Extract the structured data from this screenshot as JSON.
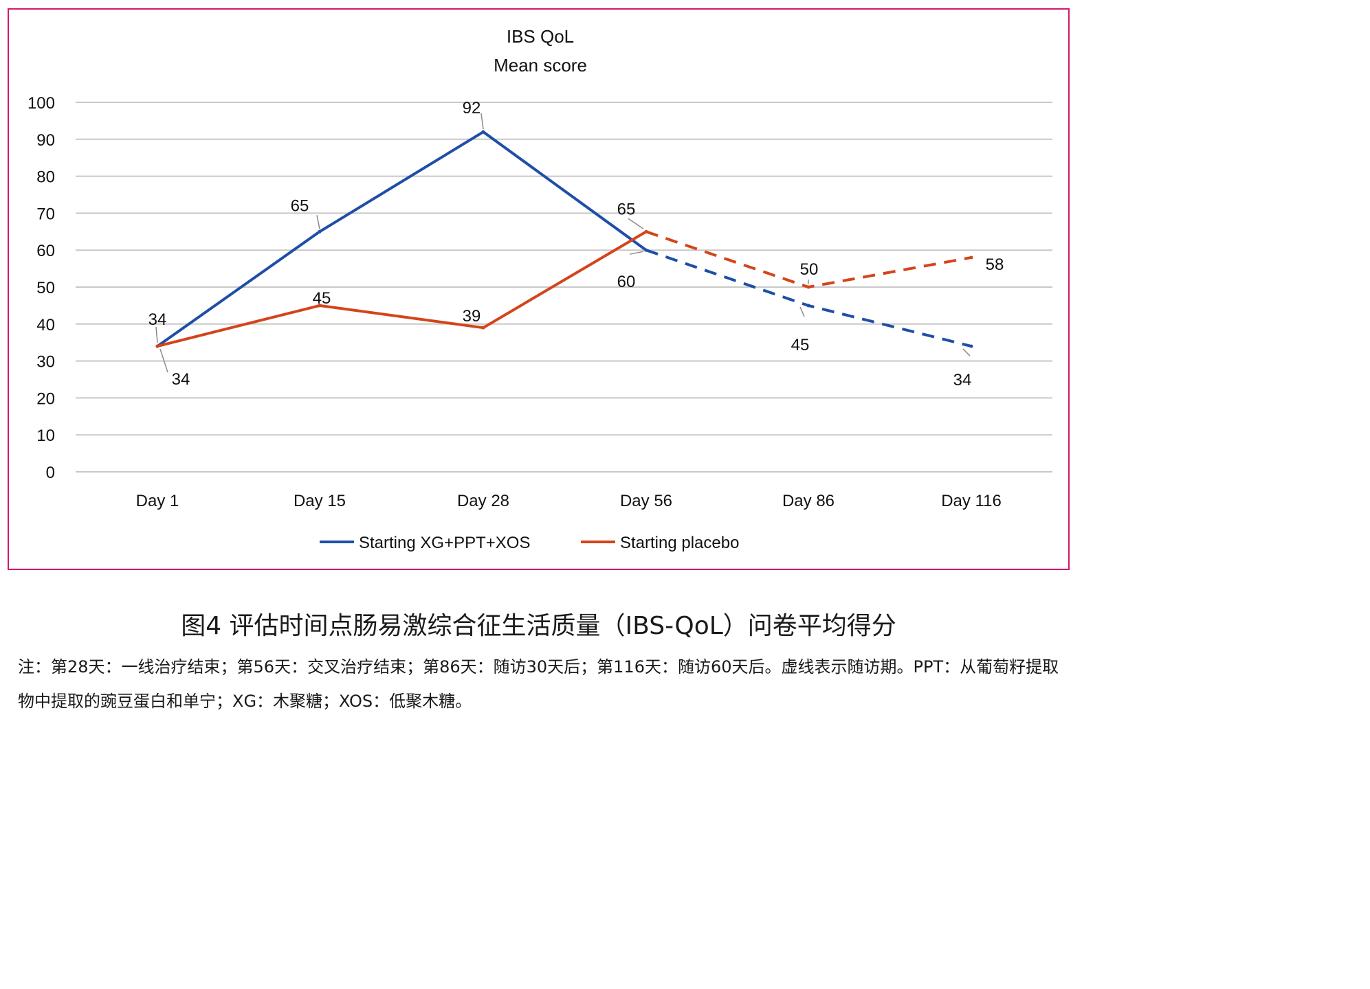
{
  "chart_data": {
    "type": "line",
    "title": "IBS QoL",
    "subtitle": "Mean score",
    "categories": [
      "Day 1",
      "Day 15",
      "Day 28",
      "Day 56",
      "Day 86",
      "Day 116"
    ],
    "ylim": [
      0,
      100
    ],
    "yticks": [
      0,
      10,
      20,
      30,
      40,
      50,
      60,
      70,
      80,
      90,
      100
    ],
    "grid": true,
    "legend_position": "bottom",
    "series": [
      {
        "name": "Starting XG+PPT+XOS",
        "color": "#1f4ea8",
        "values": [
          34,
          65,
          92,
          60,
          45,
          34
        ],
        "data_labels": [
          "34",
          "65",
          "92",
          "60",
          "45",
          "34"
        ],
        "solid_until_index": 3
      },
      {
        "name": "Starting placebo",
        "color": "#d4441b",
        "values": [
          34,
          45,
          39,
          65,
          50,
          58
        ],
        "data_labels": [
          "34",
          "45",
          "39",
          "65",
          "50",
          "58"
        ],
        "solid_until_index": 3
      }
    ],
    "dashed_note": "dashed after Day 56"
  },
  "caption": {
    "title": "图4 评估时间点肠易激综合征生活质量（IBS-QoL）问卷平均得分",
    "note": "注：第28天：一线治疗结束；第56天：交叉治疗结束；第86天：随访30天后；第116天：随访60天后。虚线表示随访期。PPT：从葡萄籽提取物中提取的豌豆蛋白和单宁；XG：木聚糖；XOS：低聚木糖。"
  }
}
